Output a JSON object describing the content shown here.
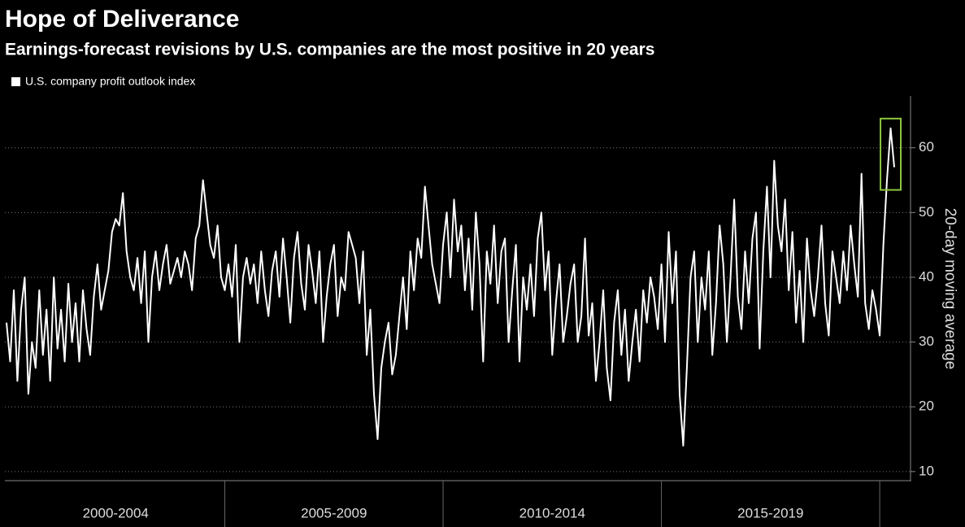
{
  "chart_data": {
    "type": "line",
    "title": "Hope of Deliverance",
    "subtitle": "Earnings-forecast revisions by U.S. companies are the most positive in 20 years",
    "y_label": "20-day moving average",
    "periods": [
      "2000-2004",
      "2005-2009",
      "2010-2014",
      "2015-2019"
    ],
    "series": [
      {
        "name": "U.S. company profit outlook index",
        "color": "#ffffff",
        "values": [
          33,
          27,
          38,
          24,
          35,
          40,
          22,
          30,
          26,
          38,
          28,
          35,
          24,
          40,
          29,
          35,
          27,
          39,
          30,
          36,
          27,
          38,
          32,
          28,
          37,
          42,
          35,
          38,
          41,
          47,
          49,
          48,
          53,
          44,
          40,
          38,
          43,
          36,
          44,
          30,
          40,
          44,
          38,
          42,
          45,
          39,
          41,
          43,
          40,
          44,
          42,
          38,
          46,
          48,
          55,
          50,
          45,
          43,
          48,
          40,
          38,
          42,
          37,
          45,
          30,
          40,
          43,
          39,
          42,
          36,
          44,
          38,
          34,
          41,
          44,
          37,
          46,
          40,
          33,
          43,
          47,
          39,
          35,
          45,
          41,
          36,
          44,
          30,
          37,
          42,
          45,
          34,
          40,
          38,
          47,
          45,
          43,
          36,
          44,
          28,
          35,
          22,
          15,
          26,
          30,
          33,
          25,
          28,
          34,
          40,
          32,
          44,
          38,
          46,
          43,
          54,
          48,
          42,
          39,
          36,
          45,
          50,
          40,
          52,
          44,
          48,
          38,
          46,
          35,
          50,
          42,
          27,
          44,
          39,
          48,
          36,
          44,
          46,
          30,
          38,
          45,
          27,
          40,
          35,
          42,
          34,
          46,
          50,
          38,
          44,
          28,
          36,
          42,
          30,
          34,
          39,
          42,
          30,
          34,
          46,
          31,
          36,
          24,
          30,
          38,
          26,
          21,
          33,
          38,
          28,
          35,
          24,
          30,
          35,
          27,
          38,
          33,
          40,
          37,
          32,
          42,
          30,
          47,
          36,
          44,
          22,
          14,
          26,
          40,
          44,
          30,
          40,
          35,
          44,
          28,
          36,
          48,
          42,
          30,
          40,
          52,
          37,
          32,
          44,
          36,
          46,
          50,
          29,
          44,
          54,
          40,
          58,
          48,
          44,
          52,
          38,
          47,
          33,
          41,
          30,
          46,
          38,
          34,
          40,
          48,
          36,
          31,
          44,
          40,
          36,
          44,
          38,
          48,
          42,
          37,
          56,
          36,
          32,
          38,
          35,
          31,
          45,
          55,
          63,
          57
        ]
      }
    ],
    "ylim": [
      8.6,
      68
    ],
    "yticks": [
      10,
      20,
      30,
      40,
      50,
      60
    ],
    "grid": true,
    "highlight_color": "#8dc63f"
  }
}
